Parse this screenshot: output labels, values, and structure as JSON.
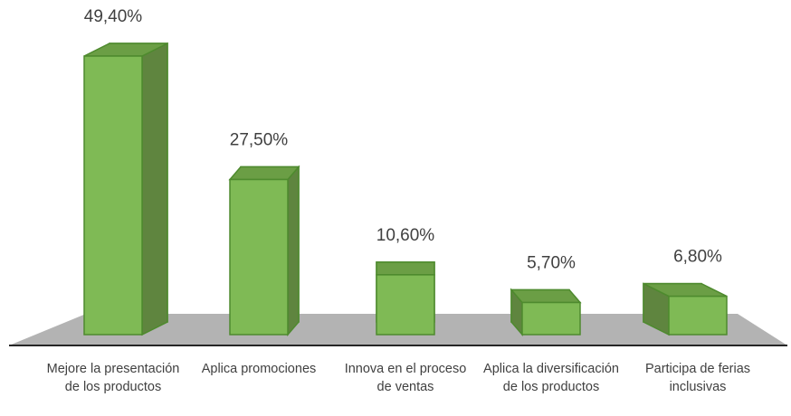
{
  "chart_data": {
    "type": "bar3d",
    "categories": [
      "Mejore la presentación de los productos",
      "Aplica promociones",
      "Innova en el proceso de ventas",
      "Aplica la diversificación de los productos",
      "Participa de ferias inclusivas"
    ],
    "values": [
      49.4,
      27.5,
      10.6,
      5.7,
      6.8
    ],
    "value_labels": [
      "49,40%",
      "27,50%",
      "10,60%",
      "5,70%",
      "6,80%"
    ],
    "color": "#7fba55"
  }
}
